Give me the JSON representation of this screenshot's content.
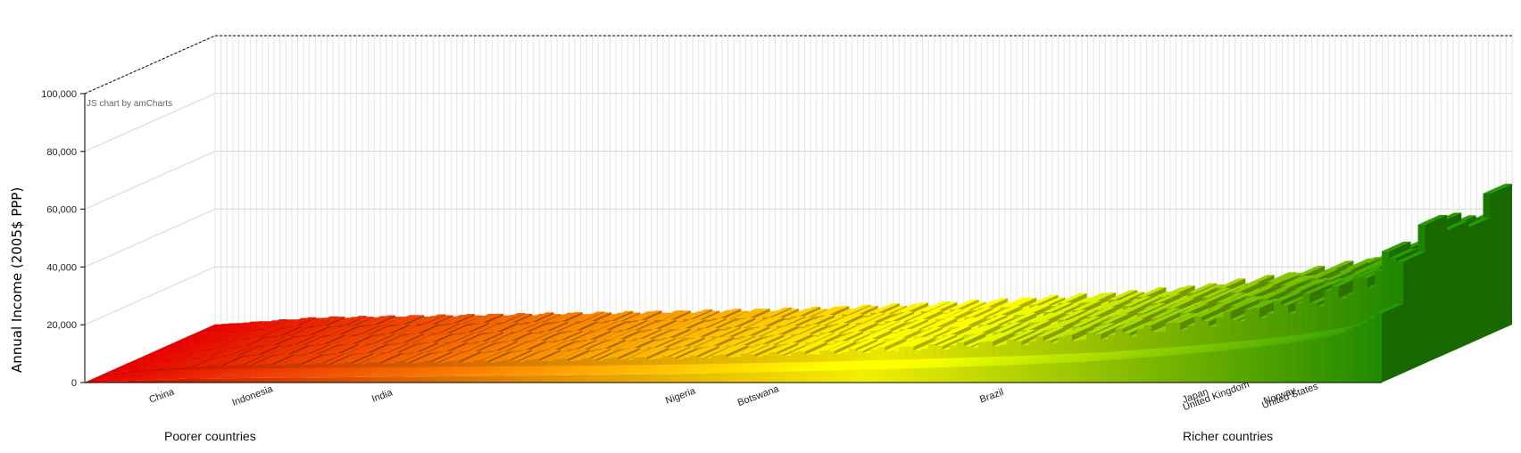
{
  "chart_data": {
    "type": "bar",
    "style": "3d-column",
    "ylabel": "Annual Income (2005$ PPP)",
    "ylim": [
      0,
      100000
    ],
    "yticks": [
      0,
      20000,
      40000,
      60000,
      80000,
      100000
    ],
    "ytick_labels": [
      "0",
      "20,000",
      "40,000",
      "60,000",
      "80,000",
      "100,000"
    ],
    "credit": "JS chart by amCharts",
    "group_labels": {
      "left": "Poorer countries",
      "right": "Richer countries"
    },
    "grid": true,
    "color_scale": {
      "low": "#cc0000",
      "mid": "#f2f000",
      "high": "#1f8a00"
    },
    "labeled_categories": [
      {
        "name": "China",
        "position": 0.06
      },
      {
        "name": "Indonesia",
        "position": 0.13
      },
      {
        "name": "India",
        "position": 0.23
      },
      {
        "name": "Nigeria",
        "position": 0.46
      },
      {
        "name": "Botswana",
        "position": 0.52
      },
      {
        "name": "Brazil",
        "position": 0.7
      },
      {
        "name": "Japan",
        "position": 0.857
      },
      {
        "name": "United Kingdom",
        "position": 0.873
      },
      {
        "name": "Norway",
        "position": 0.922
      },
      {
        "name": "United States",
        "position": 0.93
      }
    ],
    "profile": [
      {
        "percentile": 0.0,
        "value": 0
      },
      {
        "percentile": 0.08,
        "value": 2500
      },
      {
        "percentile": 0.22,
        "value": 3500
      },
      {
        "percentile": 0.36,
        "value": 4500
      },
      {
        "percentile": 0.46,
        "value": 5500
      },
      {
        "percentile": 0.55,
        "value": 7000
      },
      {
        "percentile": 0.62,
        "value": 8500
      },
      {
        "percentile": 0.7,
        "value": 10500
      },
      {
        "percentile": 0.77,
        "value": 13000
      },
      {
        "percentile": 0.83,
        "value": 16500
      },
      {
        "percentile": 0.89,
        "value": 21000
      },
      {
        "percentile": 0.93,
        "value": 25000
      },
      {
        "percentile": 0.965,
        "value": 30000
      },
      {
        "percentile": 0.985,
        "value": 37000
      },
      {
        "percentile": 1.0,
        "value": 45000
      }
    ]
  }
}
